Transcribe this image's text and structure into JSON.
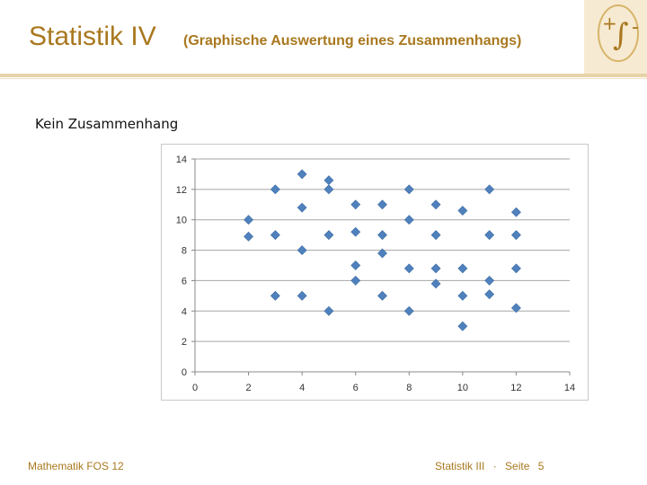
{
  "slide": {
    "title": "Statistik IV",
    "subtitle": "(Graphische Auswertung eines Zusammenhangs)"
  },
  "logo": {
    "icon": "integral-plus-minus-icon",
    "accent": "#a9781f",
    "background": "#f6ead2"
  },
  "chart_data": {
    "type": "scatter",
    "title": "Kein Zusammenhang",
    "xlim": [
      0,
      14
    ],
    "ylim": [
      0,
      14
    ],
    "x_ticks": [
      0,
      2,
      4,
      6,
      8,
      10,
      12,
      14
    ],
    "y_ticks": [
      0,
      2,
      4,
      6,
      8,
      10,
      12,
      14
    ],
    "grid": "horizontal",
    "legend": "none",
    "marker_color": "#4f81bd",
    "points": [
      {
        "x": 2,
        "y": 10
      },
      {
        "x": 2,
        "y": 8.9
      },
      {
        "x": 3,
        "y": 12
      },
      {
        "x": 3,
        "y": 9
      },
      {
        "x": 3,
        "y": 5
      },
      {
        "x": 4,
        "y": 13
      },
      {
        "x": 4,
        "y": 10.8
      },
      {
        "x": 4,
        "y": 8
      },
      {
        "x": 4,
        "y": 5
      },
      {
        "x": 5,
        "y": 12.6
      },
      {
        "x": 5,
        "y": 12
      },
      {
        "x": 5,
        "y": 9
      },
      {
        "x": 5,
        "y": 4
      },
      {
        "x": 6,
        "y": 11
      },
      {
        "x": 6,
        "y": 9.2
      },
      {
        "x": 6,
        "y": 7
      },
      {
        "x": 6,
        "y": 6
      },
      {
        "x": 7,
        "y": 11
      },
      {
        "x": 7,
        "y": 9
      },
      {
        "x": 7,
        "y": 7.8
      },
      {
        "x": 7,
        "y": 5
      },
      {
        "x": 8,
        "y": 12
      },
      {
        "x": 8,
        "y": 10
      },
      {
        "x": 8,
        "y": 6.8
      },
      {
        "x": 8,
        "y": 4
      },
      {
        "x": 9,
        "y": 11
      },
      {
        "x": 9,
        "y": 9
      },
      {
        "x": 9,
        "y": 6.8
      },
      {
        "x": 9,
        "y": 5.8
      },
      {
        "x": 10,
        "y": 10.6
      },
      {
        "x": 10,
        "y": 6.8
      },
      {
        "x": 10,
        "y": 5
      },
      {
        "x": 10,
        "y": 3
      },
      {
        "x": 11,
        "y": 12
      },
      {
        "x": 11,
        "y": 9
      },
      {
        "x": 11,
        "y": 6
      },
      {
        "x": 11,
        "y": 5.1
      },
      {
        "x": 12,
        "y": 10.5
      },
      {
        "x": 12,
        "y": 9
      },
      {
        "x": 12,
        "y": 6.8
      },
      {
        "x": 12,
        "y": 4.2
      }
    ]
  },
  "footer": {
    "left": "Mathematik FOS 12",
    "section": "Statistik III",
    "separator": "·",
    "page_label": "Seite",
    "page_number": "5"
  }
}
